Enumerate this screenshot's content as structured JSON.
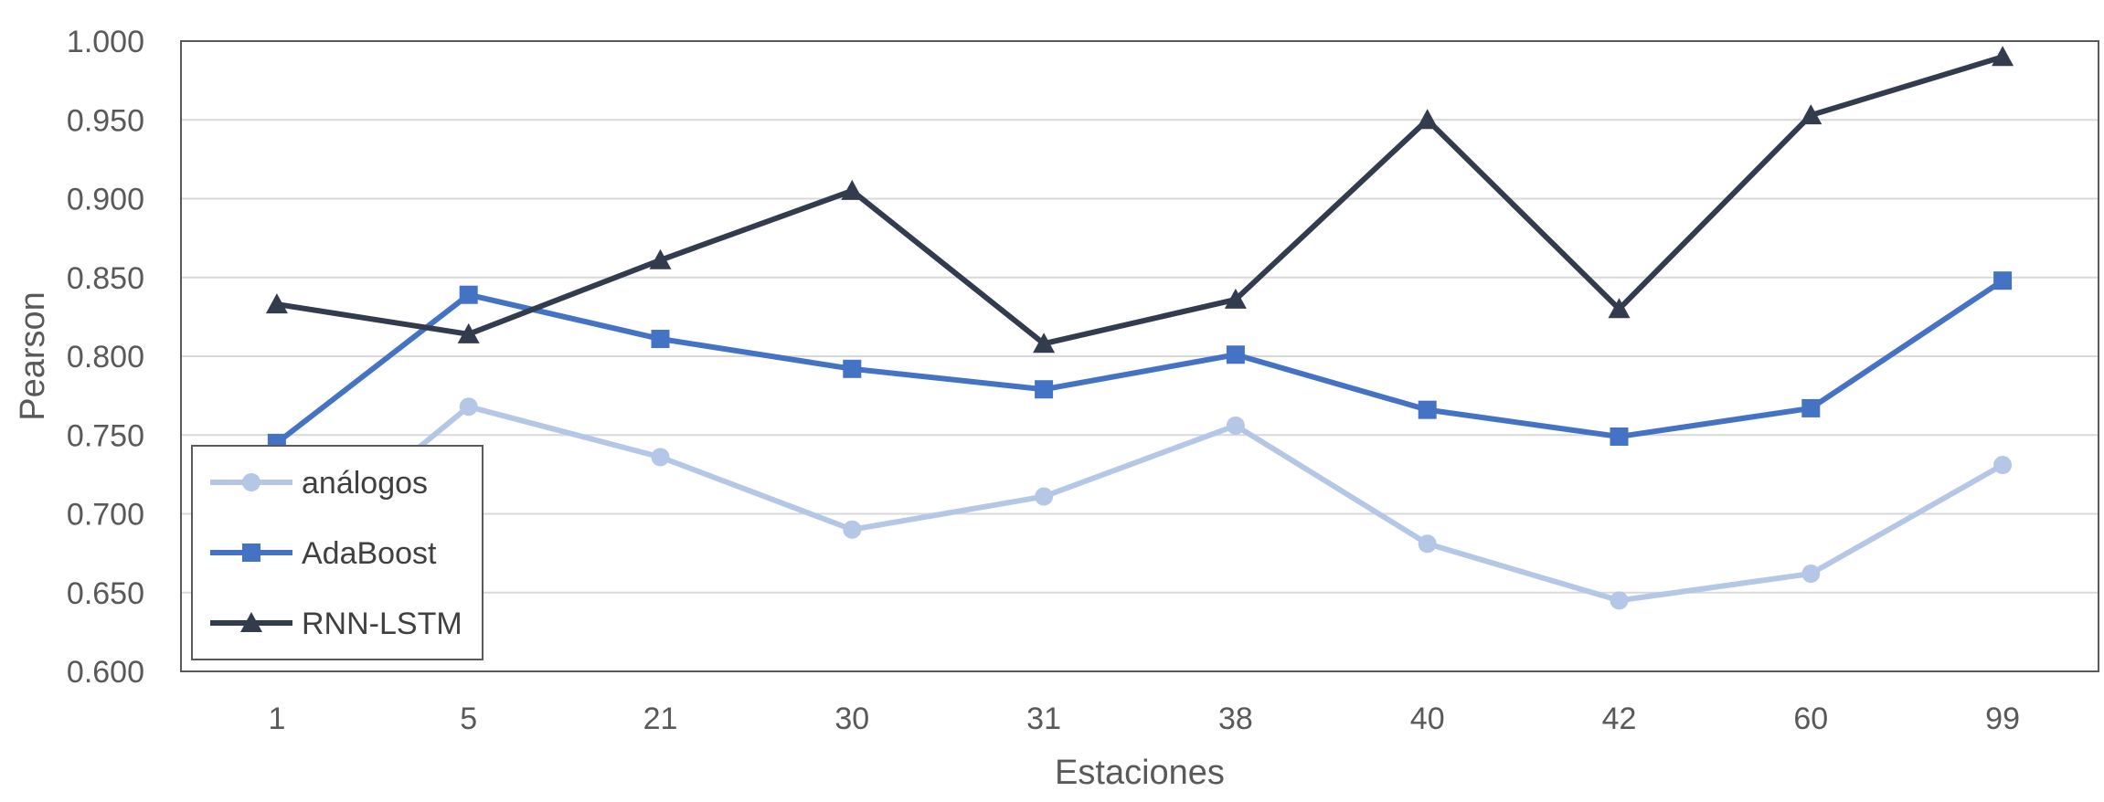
{
  "chart_data": {
    "type": "line",
    "title": "",
    "xlabel": "Estaciones",
    "ylabel": "Pearson",
    "categories": [
      "1",
      "5",
      "21",
      "30",
      "31",
      "38",
      "40",
      "42",
      "60",
      "99"
    ],
    "ylim": [
      0.6,
      1.0
    ],
    "yticks": [
      "0.600",
      "0.650",
      "0.700",
      "0.750",
      "0.800",
      "0.850",
      "0.900",
      "0.950",
      "1.000"
    ],
    "grid": true,
    "legend_position": "bottom-left",
    "series": [
      {
        "name": "análogos",
        "marker": "circle",
        "color": "#B4C7E7",
        "values": [
          0.668,
          0.768,
          0.736,
          0.69,
          0.711,
          0.756,
          0.681,
          0.645,
          0.662,
          0.731
        ]
      },
      {
        "name": "AdaBoost",
        "marker": "square",
        "color": "#4472C4",
        "values": [
          0.745,
          0.839,
          0.811,
          0.792,
          0.779,
          0.801,
          0.766,
          0.749,
          0.767,
          0.848
        ]
      },
      {
        "name": "RNN-LSTM",
        "marker": "triangle",
        "color": "#323C4E",
        "values": [
          0.833,
          0.814,
          0.861,
          0.905,
          0.808,
          0.836,
          0.95,
          0.83,
          0.953,
          0.99
        ]
      }
    ]
  }
}
